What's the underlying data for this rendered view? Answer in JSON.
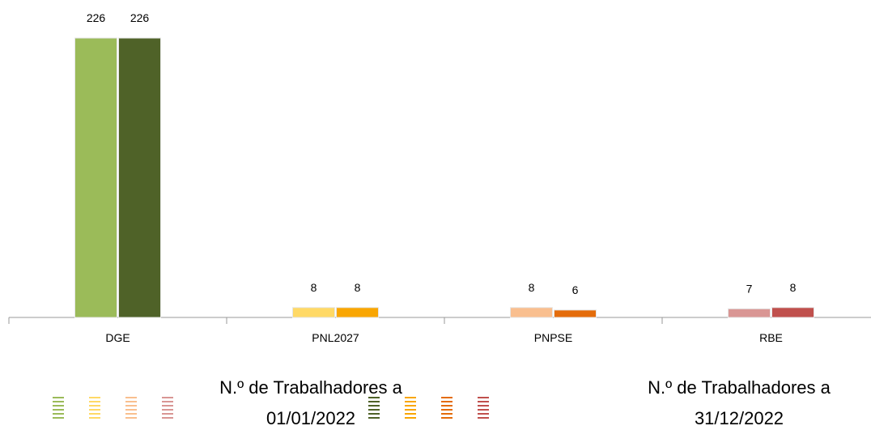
{
  "chart_data": {
    "type": "bar",
    "categories": [
      "DGE",
      "PNL2027",
      "PNPSE",
      "RBE"
    ],
    "series": [
      {
        "name": "N.º de Trabalhadores a 01/01/2022",
        "colors": [
          "#9bbb59",
          "#ffd966",
          "#f9bf8f",
          "#d99694"
        ],
        "values": [
          226,
          8,
          8,
          7
        ]
      },
      {
        "name": "N.º de Trabalhadores a 31/12/2022",
        "colors": [
          "#4f6228",
          "#f9a602",
          "#e46c0a",
          "#c0504d"
        ],
        "values": [
          226,
          8,
          6,
          8
        ]
      }
    ]
  }
}
